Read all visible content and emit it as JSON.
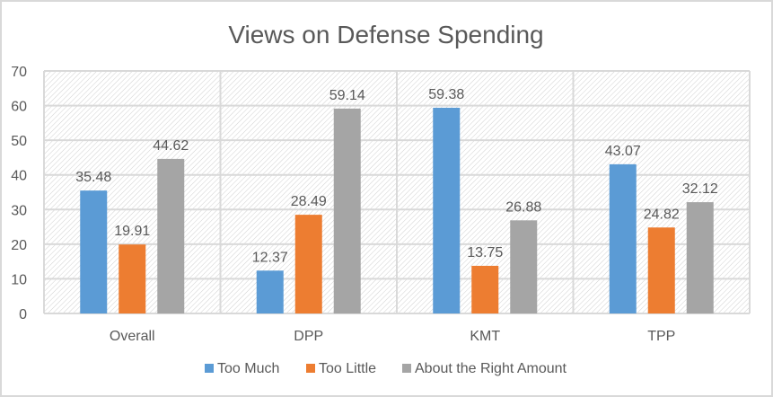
{
  "chart_data": {
    "type": "bar",
    "title": "Views on Defense Spending",
    "xlabel": "",
    "ylabel": "",
    "ylim": [
      0,
      70
    ],
    "yticks": [
      0,
      10,
      20,
      30,
      40,
      50,
      60,
      70
    ],
    "ytick_labels": [
      "0",
      "10",
      "20",
      "30",
      "40",
      "50",
      "60",
      "70"
    ],
    "grid": true,
    "legend_position": "bottom",
    "categories": [
      "Overall",
      "DPP",
      "KMT",
      "TPP"
    ],
    "series": [
      {
        "name": "Too Much",
        "color": "#5b9bd5",
        "values": [
          35.48,
          12.37,
          59.38,
          43.07
        ],
        "labels": [
          "35.48",
          "12.37",
          "59.38",
          "43.07"
        ]
      },
      {
        "name": "Too Little",
        "color": "#ed7d31",
        "values": [
          19.91,
          28.49,
          13.75,
          24.82
        ],
        "labels": [
          "19.91",
          "28.49",
          "13.75",
          "24.82"
        ]
      },
      {
        "name": "About the Right Amount",
        "color": "#a5a5a5",
        "values": [
          44.62,
          59.14,
          26.88,
          32.12
        ],
        "labels": [
          "44.62",
          "59.14",
          "26.88",
          "32.12"
        ]
      }
    ]
  }
}
